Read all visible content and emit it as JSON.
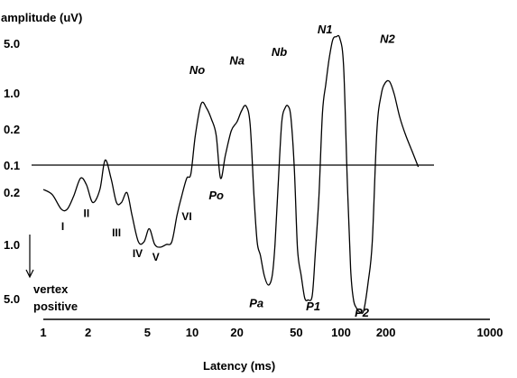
{
  "chart_data": {
    "type": "line",
    "title": "",
    "ylabel": "amplitude (uV)",
    "xlabel": "Latency (ms)",
    "x_scale": "log",
    "xlim": [
      1,
      1000
    ],
    "x_ticks": [
      "1",
      "2",
      "5",
      "10",
      "20",
      "50",
      "100",
      "200",
      "1000"
    ],
    "x_tick_values": [
      1,
      2,
      5,
      10,
      20,
      50,
      100,
      200,
      1000
    ],
    "y_ticks_negative": [
      "5.0",
      "1.0",
      "0.2"
    ],
    "y_tick_baseline": "0.1",
    "y_ticks_positive": [
      "0.2",
      "1.0",
      "5.0"
    ],
    "y_tick_signed_values": [
      -5.0,
      -1.0,
      -0.2,
      0.1,
      0.2,
      1.0,
      5.0
    ],
    "y_note": "negative up",
    "baseline_value": 0.1,
    "annotation": [
      "vertex",
      "positive"
    ],
    "series": [
      {
        "x": [
          1.0,
          1.15,
          1.32,
          1.45,
          1.6,
          1.78,
          1.95,
          2.15,
          2.4,
          2.6,
          2.85,
          3.1,
          3.35,
          3.65,
          3.95,
          4.35,
          4.75,
          5.15,
          5.6,
          6.1,
          6.7,
          7.3,
          7.9,
          8.5,
          9.2,
          9.8,
          10.5,
          11.5,
          12.5,
          13.5,
          14.5,
          15.5,
          16.7,
          18.3,
          20,
          21.5,
          23,
          24.5,
          26,
          27.3,
          28.7,
          30.5,
          32.5,
          34.5,
          36,
          38,
          40,
          42,
          44,
          46,
          48.5,
          51,
          54,
          57,
          60,
          64,
          67,
          71,
          75,
          79,
          83,
          88,
          93,
          98,
          104,
          110,
          116,
          121,
          127,
          134,
          142,
          152,
          162,
          174,
          186,
          198,
          212,
          228,
          248,
          272,
          300,
          330
        ],
        "y": [
          0.2,
          0.28,
          0.5,
          0.5,
          0.3,
          0.15,
          0.18,
          0.4,
          0.2,
          0.07,
          0.15,
          0.4,
          0.4,
          0.25,
          0.6,
          1.0,
          1.0,
          0.8,
          1.2,
          1.4,
          1.2,
          1.0,
          0.6,
          0.3,
          0.15,
          0.13,
          -0.1,
          -0.7,
          -0.6,
          -0.35,
          -0.1,
          0.15,
          0.05,
          -0.15,
          -0.3,
          -0.55,
          -0.65,
          -0.25,
          0.3,
          1.0,
          2.0,
          3.5,
          4.2,
          3.5,
          1.2,
          0.15,
          -0.3,
          -0.6,
          -0.65,
          -0.4,
          0.1,
          1.5,
          3.5,
          5.5,
          6.0,
          5.0,
          2.0,
          0.3,
          -0.5,
          -1.5,
          -3.5,
          -5.8,
          -7.2,
          -6.5,
          -3.0,
          0.15,
          3.0,
          5.8,
          8.0,
          9.0,
          8.6,
          4.0,
          1.0,
          -0.15,
          -0.9,
          -1.6,
          -1.7,
          -0.9,
          -0.4,
          -0.1,
          0.03,
          0.1
        ]
      }
    ],
    "peak_labels": [
      {
        "text": "I",
        "x": 1.35,
        "y": 0.75
      },
      {
        "text": "II",
        "x": 1.95,
        "y": 0.55
      },
      {
        "text": "III",
        "x": 3.1,
        "y": 0.85
      },
      {
        "text": "IV",
        "x": 4.3,
        "y": 1.8
      },
      {
        "text": "V",
        "x": 5.7,
        "y": 2.05
      },
      {
        "text": "VI",
        "x": 9.2,
        "y": 0.6
      },
      {
        "text": "No",
        "x": 10.8,
        "y": -2.7
      },
      {
        "text": "Po",
        "x": 14.5,
        "y": 0.28
      },
      {
        "text": "Na",
        "x": 20,
        "y": -3.5
      },
      {
        "text": "Pa",
        "x": 27,
        "y": 6.7
      },
      {
        "text": "Nb",
        "x": 38.5,
        "y": -4.2
      },
      {
        "text": "P1",
        "x": 65,
        "y": 7.4
      },
      {
        "text": "N1",
        "x": 78,
        "y": -10.8
      },
      {
        "text": "P2",
        "x": 138,
        "y": 9.0
      },
      {
        "text": "N2",
        "x": 205,
        "y": -6.4
      }
    ]
  }
}
